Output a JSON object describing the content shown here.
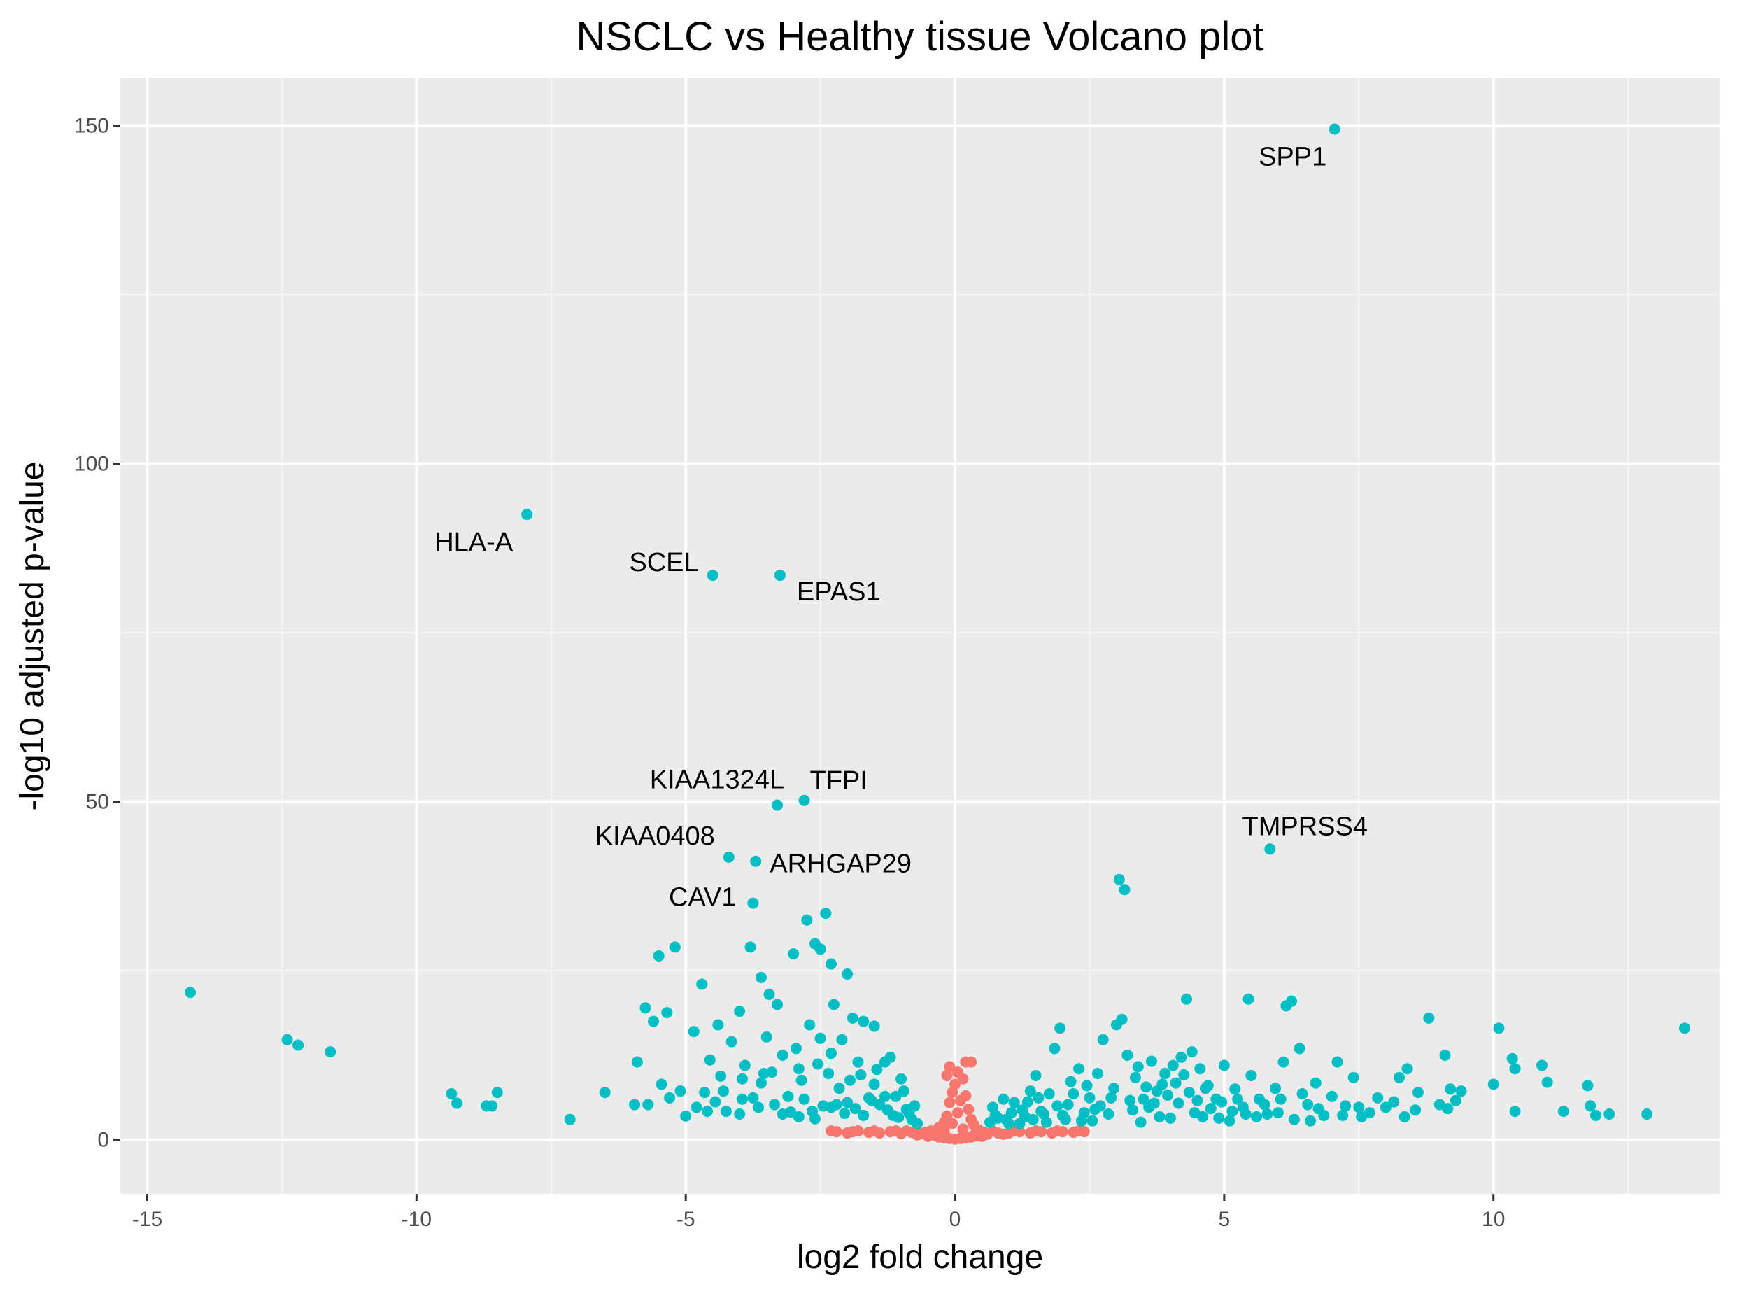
{
  "chart_data": {
    "type": "scatter",
    "title": "NSCLC vs Healthy tissue Volcano plot",
    "xlabel": "log2 fold change",
    "ylabel": "-log10 adjusted p-value",
    "xlim": [
      -15.5,
      14.2
    ],
    "ylim": [
      -8,
      157
    ],
    "x_ticks": [
      -15,
      -10,
      -5,
      0,
      5,
      10
    ],
    "y_ticks": [
      0,
      50,
      100,
      150
    ],
    "grid": true,
    "legend": "none",
    "colors": {
      "significant": "#00BFC4",
      "not_significant": "#F8766D",
      "panel_background": "#EBEBEB",
      "grid": "#FFFFFF"
    },
    "labeled_points": [
      {
        "label": "SPP1",
        "x": 7.05,
        "y": 149.5
      },
      {
        "label": "HLA-A",
        "x": -7.95,
        "y": 92.5
      },
      {
        "label": "SCEL",
        "x": -4.5,
        "y": 83.5
      },
      {
        "label": "EPAS1",
        "x": -3.25,
        "y": 83.5
      },
      {
        "label": "KIAA1324L",
        "x": -3.3,
        "y": 49.5
      },
      {
        "label": "TFPI",
        "x": -2.8,
        "y": 50.2
      },
      {
        "label": "KIAA0408",
        "x": -4.2,
        "y": 41.8
      },
      {
        "label": "ARHGAP29",
        "x": -3.7,
        "y": 41.2
      },
      {
        "label": "CAV1",
        "x": -3.75,
        "y": 35.0
      },
      {
        "label": "TMPRSS4",
        "x": 5.85,
        "y": 43.0
      }
    ],
    "significant_points": [
      [
        -14.2,
        21.8
      ],
      [
        -12.4,
        14.8
      ],
      [
        -12.2,
        14.0
      ],
      [
        -11.6,
        13.0
      ],
      [
        -9.35,
        6.8
      ],
      [
        -9.25,
        5.4
      ],
      [
        -8.7,
        5.0
      ],
      [
        -8.6,
        5.0
      ],
      [
        -8.5,
        7.0
      ],
      [
        -7.15,
        3.0
      ],
      [
        -6.5,
        7.0
      ],
      [
        -5.95,
        5.2
      ],
      [
        -5.9,
        11.5
      ],
      [
        -5.7,
        5.2
      ],
      [
        -5.45,
        8.2
      ],
      [
        -5.3,
        6.2
      ],
      [
        -5.1,
        7.2
      ],
      [
        -4.85,
        16.0
      ],
      [
        -4.6,
        4.2
      ],
      [
        -3.95,
        6.0
      ],
      [
        -3.5,
        15.2
      ],
      [
        -3.2,
        3.8
      ],
      [
        -2.9,
        3.4
      ],
      [
        -2.6,
        3.1
      ],
      [
        -2.3,
        4.8
      ],
      [
        -2.0,
        5.5
      ],
      [
        -1.7,
        3.6
      ],
      [
        -1.3,
        6.4
      ],
      [
        -1.05,
        3.3
      ],
      [
        -4.0,
        3.8
      ],
      [
        -5.0,
        3.5
      ],
      [
        -3.8,
        28.5
      ],
      [
        -3.6,
        24.0
      ],
      [
        -3.45,
        21.5
      ],
      [
        -3.3,
        20.0
      ],
      [
        -3.0,
        27.5
      ],
      [
        -2.75,
        32.5
      ],
      [
        -2.6,
        29.0
      ],
      [
        -2.5,
        28.2
      ],
      [
        -2.4,
        33.5
      ],
      [
        -2.3,
        26.0
      ],
      [
        -2.0,
        24.5
      ],
      [
        -1.9,
        18.0
      ],
      [
        -1.7,
        17.5
      ],
      [
        -1.5,
        16.8
      ],
      [
        -1.2,
        12.2
      ],
      [
        -1.0,
        9.0
      ],
      [
        -5.5,
        27.2
      ],
      [
        -5.2,
        28.5
      ],
      [
        -4.7,
        23.0
      ],
      [
        -4.4,
        17.0
      ],
      [
        -4.0,
        19.0
      ],
      [
        -3.9,
        11.0
      ],
      [
        -3.6,
        8.4
      ],
      [
        -3.4,
        10.0
      ],
      [
        -3.2,
        12.5
      ],
      [
        -2.95,
        13.5
      ],
      [
        -2.7,
        17.0
      ],
      [
        -2.5,
        15.0
      ],
      [
        -2.25,
        20.0
      ],
      [
        -2.1,
        14.8
      ],
      [
        -1.8,
        11.5
      ],
      [
        -1.5,
        8.2
      ],
      [
        -1.3,
        11.5
      ],
      [
        -1.1,
        6.4
      ],
      [
        -0.9,
        4.5
      ],
      [
        -0.8,
        3.0
      ],
      [
        -0.75,
        5.0
      ],
      [
        -0.7,
        2.4
      ],
      [
        -5.6,
        17.5
      ],
      [
        -5.75,
        19.5
      ],
      [
        -5.35,
        18.8
      ],
      [
        -4.8,
        4.8
      ],
      [
        -4.55,
        11.8
      ],
      [
        -4.3,
        7.2
      ],
      [
        -4.15,
        14.5
      ],
      [
        -3.75,
        6.2
      ],
      [
        -3.55,
        9.8
      ],
      [
        -3.1,
        6.4
      ],
      [
        -2.85,
        8.8
      ],
      [
        -2.55,
        11.2
      ],
      [
        -2.35,
        9.8
      ],
      [
        -2.15,
        7.6
      ],
      [
        -1.95,
        8.8
      ],
      [
        -1.6,
        6.2
      ],
      [
        -1.4,
        5.2
      ],
      [
        -1.25,
        4.4
      ],
      [
        -0.95,
        7.2
      ],
      [
        -2.45,
        5.0
      ],
      [
        -3.35,
        5.2
      ],
      [
        -4.45,
        5.6
      ],
      [
        -4.25,
        4.2
      ],
      [
        -3.65,
        4.8
      ],
      [
        -2.05,
        3.9
      ],
      [
        -1.85,
        4.6
      ],
      [
        -1.55,
        5.8
      ],
      [
        -2.8,
        6.0
      ],
      [
        -3.05,
        4.1
      ],
      [
        -2.65,
        4.2
      ],
      [
        -2.2,
        5.2
      ],
      [
        -1.15,
        3.6
      ],
      [
        -0.85,
        3.9
      ],
      [
        -4.65,
        7.0
      ],
      [
        -3.95,
        9.0
      ],
      [
        -4.35,
        9.4
      ],
      [
        -2.9,
        10.5
      ],
      [
        -1.75,
        9.6
      ],
      [
        -1.45,
        10.4
      ],
      [
        -2.3,
        12.8
      ],
      [
        0.65,
        2.6
      ],
      [
        0.7,
        4.8
      ],
      [
        0.8,
        3.2
      ],
      [
        0.9,
        6.0
      ],
      [
        1.0,
        2.4
      ],
      [
        1.1,
        5.5
      ],
      [
        1.3,
        3.4
      ],
      [
        1.4,
        7.2
      ],
      [
        1.5,
        9.5
      ],
      [
        1.6,
        4.2
      ],
      [
        1.75,
        6.8
      ],
      [
        1.85,
        13.5
      ],
      [
        1.95,
        16.5
      ],
      [
        2.1,
        5.2
      ],
      [
        2.3,
        10.5
      ],
      [
        2.45,
        8.0
      ],
      [
        2.6,
        4.5
      ],
      [
        2.75,
        14.8
      ],
      [
        2.9,
        6.2
      ],
      [
        3.0,
        17.0
      ],
      [
        3.1,
        17.8
      ],
      [
        3.2,
        12.5
      ],
      [
        3.35,
        9.2
      ],
      [
        3.5,
        6.0
      ],
      [
        3.6,
        4.8
      ],
      [
        3.75,
        7.2
      ],
      [
        3.9,
        9.8
      ],
      [
        4.05,
        11.0
      ],
      [
        4.2,
        12.2
      ],
      [
        4.3,
        20.8
      ],
      [
        4.4,
        13.0
      ],
      [
        4.55,
        10.5
      ],
      [
        4.7,
        8.0
      ],
      [
        4.85,
        6.0
      ],
      [
        5.0,
        11.0
      ],
      [
        5.2,
        7.5
      ],
      [
        5.35,
        4.8
      ],
      [
        5.5,
        9.5
      ],
      [
        5.65,
        6.0
      ],
      [
        5.8,
        3.8
      ],
      [
        5.95,
        7.6
      ],
      [
        6.1,
        11.5
      ],
      [
        6.15,
        19.8
      ],
      [
        6.25,
        20.5
      ],
      [
        6.4,
        13.5
      ],
      [
        6.55,
        5.2
      ],
      [
        6.7,
        8.4
      ],
      [
        6.85,
        3.6
      ],
      [
        7.0,
        6.4
      ],
      [
        7.1,
        11.5
      ],
      [
        7.25,
        5.0
      ],
      [
        7.4,
        9.2
      ],
      [
        7.55,
        3.4
      ],
      [
        7.7,
        4.0
      ],
      [
        7.85,
        6.2
      ],
      [
        8.0,
        4.8
      ],
      [
        8.15,
        5.6
      ],
      [
        8.25,
        9.2
      ],
      [
        8.4,
        10.5
      ],
      [
        8.55,
        4.4
      ],
      [
        8.6,
        7.0
      ],
      [
        8.8,
        18.0
      ],
      [
        9.0,
        5.2
      ],
      [
        9.1,
        12.5
      ],
      [
        9.2,
        7.5
      ],
      [
        9.3,
        5.8
      ],
      [
        9.4,
        7.2
      ],
      [
        10.0,
        8.2
      ],
      [
        10.1,
        16.5
      ],
      [
        10.35,
        12.0
      ],
      [
        10.4,
        10.5
      ],
      [
        10.4,
        4.2
      ],
      [
        10.9,
        11.0
      ],
      [
        11.0,
        8.5
      ],
      [
        11.3,
        4.2
      ],
      [
        11.75,
        8.0
      ],
      [
        11.8,
        5.0
      ],
      [
        11.9,
        3.6
      ],
      [
        12.15,
        3.8
      ],
      [
        12.85,
        3.8
      ],
      [
        13.55,
        16.5
      ],
      [
        3.05,
        38.5
      ],
      [
        3.15,
        37.0
      ],
      [
        5.45,
        20.8
      ],
      [
        5.15,
        4.2
      ],
      [
        4.0,
        3.2
      ],
      [
        4.6,
        3.4
      ],
      [
        3.45,
        2.6
      ],
      [
        2.55,
        2.8
      ],
      [
        1.2,
        2.4
      ],
      [
        2.05,
        3.0
      ],
      [
        2.85,
        3.8
      ],
      [
        3.3,
        4.4
      ],
      [
        3.8,
        3.4
      ],
      [
        4.15,
        5.4
      ],
      [
        4.45,
        4.0
      ],
      [
        4.9,
        3.2
      ],
      [
        5.1,
        2.8
      ],
      [
        5.6,
        3.4
      ],
      [
        6.0,
        4.0
      ],
      [
        6.3,
        3.0
      ],
      [
        6.6,
        2.8
      ],
      [
        1.35,
        5.6
      ],
      [
        1.65,
        3.8
      ],
      [
        2.2,
        6.8
      ],
      [
        2.4,
        4.0
      ],
      [
        2.7,
        5.0
      ],
      [
        2.95,
        7.6
      ],
      [
        3.25,
        5.8
      ],
      [
        3.55,
        7.8
      ],
      [
        3.7,
        5.4
      ],
      [
        3.95,
        6.6
      ],
      [
        4.1,
        8.4
      ],
      [
        4.35,
        7.0
      ],
      [
        4.5,
        5.8
      ],
      [
        4.75,
        4.6
      ],
      [
        1.05,
        4.0
      ],
      [
        1.55,
        6.2
      ],
      [
        1.9,
        5.0
      ],
      [
        2.15,
        8.6
      ],
      [
        2.5,
        6.2
      ],
      [
        2.65,
        9.8
      ],
      [
        3.4,
        10.8
      ],
      [
        3.65,
        11.6
      ],
      [
        3.85,
        8.2
      ],
      [
        4.25,
        9.6
      ],
      [
        4.65,
        7.6
      ],
      [
        4.95,
        5.6
      ],
      [
        5.25,
        6.0
      ],
      [
        5.4,
        3.8
      ],
      [
        5.75,
        5.2
      ],
      [
        6.05,
        6.0
      ],
      [
        6.45,
        6.8
      ],
      [
        6.75,
        4.6
      ],
      [
        7.2,
        3.6
      ],
      [
        7.5,
        4.8
      ],
      [
        8.35,
        3.4
      ],
      [
        9.15,
        4.6
      ],
      [
        0.75,
        3.6
      ],
      [
        0.95,
        3.0
      ],
      [
        1.25,
        4.4
      ],
      [
        1.45,
        3.0
      ],
      [
        1.7,
        2.6
      ],
      [
        2.0,
        3.6
      ],
      [
        2.35,
        2.8
      ]
    ],
    "nonsignificant_points": [
      [
        -2.2,
        1.2
      ],
      [
        -2.0,
        1.0
      ],
      [
        -1.8,
        1.3
      ],
      [
        -1.6,
        1.1
      ],
      [
        -1.4,
        1.0
      ],
      [
        -1.2,
        1.2
      ],
      [
        -1.0,
        0.9
      ],
      [
        -0.8,
        1.1
      ],
      [
        -0.7,
        0.7
      ],
      [
        -0.6,
        0.9
      ],
      [
        -0.5,
        0.5
      ],
      [
        -0.4,
        0.7
      ],
      [
        -0.3,
        0.4
      ],
      [
        -0.2,
        0.3
      ],
      [
        -0.1,
        0.2
      ],
      [
        0.0,
        0.1
      ],
      [
        0.1,
        0.2
      ],
      [
        0.2,
        0.3
      ],
      [
        0.3,
        0.4
      ],
      [
        0.4,
        0.6
      ],
      [
        0.5,
        0.5
      ],
      [
        0.6,
        0.8
      ],
      [
        0.8,
        1.0
      ],
      [
        1.0,
        1.0
      ],
      [
        1.2,
        1.2
      ],
      [
        1.4,
        1.0
      ],
      [
        1.6,
        1.2
      ],
      [
        1.8,
        1.0
      ],
      [
        2.0,
        1.2
      ],
      [
        2.2,
        1.1
      ],
      [
        2.4,
        1.2
      ],
      [
        -0.3,
        1.8
      ],
      [
        -0.2,
        2.6
      ],
      [
        -0.15,
        3.5
      ],
      [
        -0.1,
        5.5
      ],
      [
        -0.05,
        7.0
      ],
      [
        0.0,
        8.2
      ],
      [
        -0.15,
        9.5
      ],
      [
        -0.1,
        10.8
      ],
      [
        0.05,
        10.0
      ],
      [
        0.15,
        9.0
      ],
      [
        0.2,
        6.5
      ],
      [
        0.25,
        4.5
      ],
      [
        0.3,
        3.0
      ],
      [
        0.35,
        2.2
      ],
      [
        0.05,
        4.0
      ],
      [
        -0.05,
        2.4
      ],
      [
        0.1,
        5.8
      ],
      [
        0.2,
        11.5
      ],
      [
        0.3,
        11.5
      ],
      [
        -0.2,
        1.4
      ],
      [
        0.15,
        1.6
      ],
      [
        0.45,
        1.4
      ],
      [
        -0.45,
        1.3
      ],
      [
        0.7,
        1.3
      ],
      [
        -0.9,
        1.3
      ],
      [
        1.1,
        1.3
      ],
      [
        -1.1,
        1.3
      ],
      [
        -1.5,
        1.3
      ],
      [
        1.5,
        1.3
      ],
      [
        -1.9,
        1.2
      ],
      [
        1.9,
        1.3
      ],
      [
        2.3,
        1.3
      ],
      [
        -2.3,
        1.3
      ],
      [
        0.9,
        0.8
      ],
      [
        -0.7,
        1.2
      ],
      [
        0.55,
        1.1
      ],
      [
        -0.55,
        1.1
      ],
      [
        0.35,
        0.7
      ],
      [
        -0.35,
        0.6
      ]
    ]
  }
}
